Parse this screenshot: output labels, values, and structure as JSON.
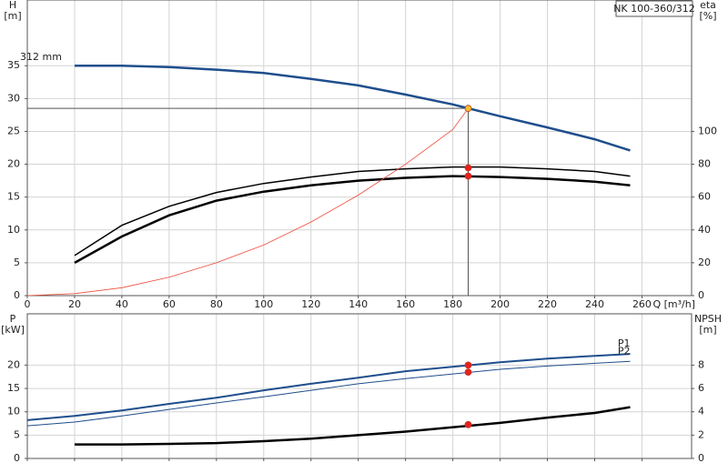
{
  "chart_data": [
    {
      "type": "line",
      "title": "NK 100-360/312",
      "ylabel": "H",
      "yunit": "[m]",
      "y2label": "eta",
      "y2unit": "[%]",
      "xlabel": "Q [m³/h]",
      "xlim": [
        0,
        281
      ],
      "xticks": [
        0,
        20,
        40,
        60,
        80,
        100,
        120,
        140,
        160,
        180,
        200,
        220,
        240,
        260
      ],
      "show_xtick_labels": true,
      "ylim": [
        0,
        45
      ],
      "yticks": [
        0,
        5,
        10,
        15,
        20,
        25,
        30,
        35
      ],
      "y2lim": [
        0,
        180
      ],
      "y2ticks": [
        0,
        20,
        40,
        60,
        80,
        100
      ],
      "grid": true,
      "crosshair": true,
      "duty_x": 186.5,
      "series": [
        {
          "name": "312 mm",
          "label_position": "start",
          "color": "#1f4e8c",
          "width": 2.5,
          "x": [
            20,
            40,
            60,
            80,
            100,
            120,
            140,
            160,
            180,
            200,
            220,
            240,
            255
          ],
          "values": [
            35,
            35,
            34.8,
            34.4,
            33.9,
            33,
            32,
            30.6,
            29.1,
            27.3,
            25.6,
            23.8,
            22.1
          ],
          "point": 28.5,
          "point_color": "#f2c12e"
        },
        {
          "color": "#000000",
          "width": 1.5,
          "axis": "y2",
          "x": [
            20,
            40,
            60,
            80,
            100,
            120,
            140,
            160,
            180,
            200,
            220,
            240,
            255
          ],
          "values": [
            24.4,
            42.8,
            54.4,
            62.8,
            68.3,
            72.2,
            75.6,
            77.2,
            78.3,
            78.3,
            77.2,
            75.6,
            72.8
          ],
          "point": 77.8,
          "point_color": "#e8201c"
        },
        {
          "color": "#000000",
          "width": 2.5,
          "axis": "y2",
          "x": [
            20,
            40,
            60,
            80,
            100,
            120,
            140,
            160,
            180,
            200,
            220,
            240,
            255
          ],
          "values": [
            20,
            36,
            48.9,
            57.8,
            63.3,
            67.2,
            70,
            71.7,
            72.8,
            72.2,
            71.1,
            69.4,
            67.2
          ],
          "point": 72.8,
          "point_color": "#e8201c"
        },
        {
          "color": "#f04a3c",
          "width": 0.8,
          "x": [
            0,
            20,
            40,
            60,
            80,
            100,
            120,
            140,
            160,
            180,
            186.5
          ],
          "values": [
            0,
            0.3,
            1.2,
            2.8,
            5,
            7.7,
            11.2,
            15.3,
            20,
            25.3,
            28.5
          ]
        }
      ]
    },
    {
      "type": "line",
      "ylabel": "P",
      "yunit": "[kW]",
      "y2label": "NPSH",
      "y2unit": "[m]",
      "xlim": [
        0,
        281
      ],
      "xticks": [
        0,
        20,
        40,
        60,
        80,
        100,
        120,
        140,
        160,
        180,
        200,
        220,
        240,
        260
      ],
      "show_xtick_labels": false,
      "ylim": [
        0,
        31
      ],
      "yticks": [
        0,
        5,
        10,
        15,
        20
      ],
      "y2lim": [
        0,
        12.4
      ],
      "y2ticks": [
        0,
        2,
        4,
        6,
        8
      ],
      "grid": true,
      "crosshair": false,
      "duty_x": 186.5,
      "series": [
        {
          "name": "P1",
          "label_position": "end",
          "color": "#1f4e8c",
          "width": 2,
          "x": [
            0,
            20,
            40,
            60,
            80,
            100,
            120,
            140,
            160,
            200,
            220,
            240,
            255
          ],
          "values": [
            8.2,
            9.1,
            10.3,
            11.7,
            13,
            14.6,
            16,
            17.3,
            18.7,
            20.6,
            21.4,
            22,
            22.4
          ],
          "point": 20,
          "point_color": "#e8201c"
        },
        {
          "name": "P2",
          "label_position": "end",
          "color": "#1f4e8c",
          "width": 1,
          "x": [
            0,
            20,
            40,
            60,
            80,
            100,
            120,
            140,
            160,
            200,
            220,
            240,
            255
          ],
          "values": [
            7,
            7.8,
            9.1,
            10.5,
            11.9,
            13.2,
            14.6,
            16,
            17.1,
            19.1,
            19.8,
            20.4,
            20.8
          ],
          "point": 18.5,
          "point_color": "#e8201c"
        },
        {
          "color": "#000000",
          "width": 2.5,
          "axis": "y2",
          "x": [
            20,
            40,
            60,
            80,
            100,
            120,
            140,
            160,
            200,
            220,
            240,
            255
          ],
          "values": [
            1.2,
            1.2,
            1.25,
            1.32,
            1.48,
            1.7,
            2,
            2.3,
            3.05,
            3.5,
            3.9,
            4.4
          ],
          "point": 2.9,
          "point_color": "#e8201c"
        }
      ]
    }
  ]
}
